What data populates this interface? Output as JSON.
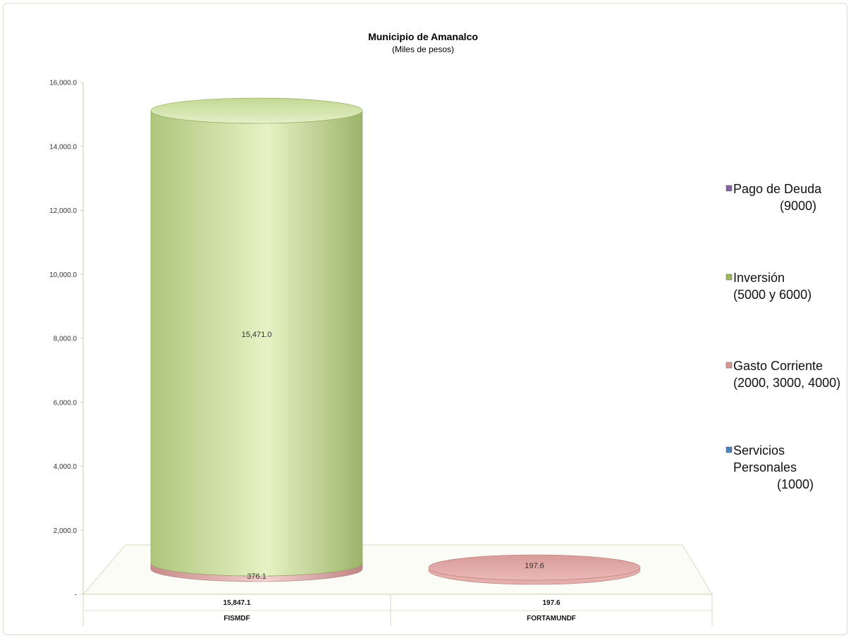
{
  "chart_data": {
    "type": "bar",
    "title": "Municipio de Amanalco",
    "subtitle": "(Miles de pesos)",
    "categories": [
      "FISMDF",
      "FORTAMUNDF"
    ],
    "totals": [
      "15,847.1",
      "197.6"
    ],
    "ylim": [
      0,
      16000
    ],
    "y_ticks": [
      "-",
      "2,000.0",
      "4,000.0",
      "6,000.0",
      "8,000.0",
      "10,000.0",
      "12,000.0",
      "14,000.0",
      "16,000.0"
    ],
    "legend_position": "right",
    "series": [
      {
        "name": "Servicios Personales (1000)",
        "legend_lines": [
          "Servicios",
          "Personales",
          "(1000)"
        ],
        "color": "#4f81bd",
        "values": [
          0,
          0
        ],
        "labels": [
          "",
          ""
        ]
      },
      {
        "name": "Gasto Corriente (2000, 3000, 4000)",
        "legend_lines": [
          "Gasto Corriente",
          "(2000, 3000, 4000)"
        ],
        "color": "#d99694",
        "values": [
          376.1,
          197.6
        ],
        "labels": [
          "376.1",
          "197.6"
        ]
      },
      {
        "name": "Inversión (5000 y 6000)",
        "legend_lines": [
          "Inversión",
          "(5000 y 6000)"
        ],
        "color": "#9bbb59",
        "values": [
          15471.0,
          0
        ],
        "labels": [
          "15,471.0",
          ""
        ]
      },
      {
        "name": "Pago de Deuda (9000)",
        "legend_lines": [
          "Pago de Deuda",
          "(9000)"
        ],
        "color": "#8064a2",
        "values": [
          0,
          0
        ],
        "labels": [
          "",
          ""
        ]
      }
    ],
    "legend_order": [
      3,
      2,
      1,
      0
    ]
  }
}
